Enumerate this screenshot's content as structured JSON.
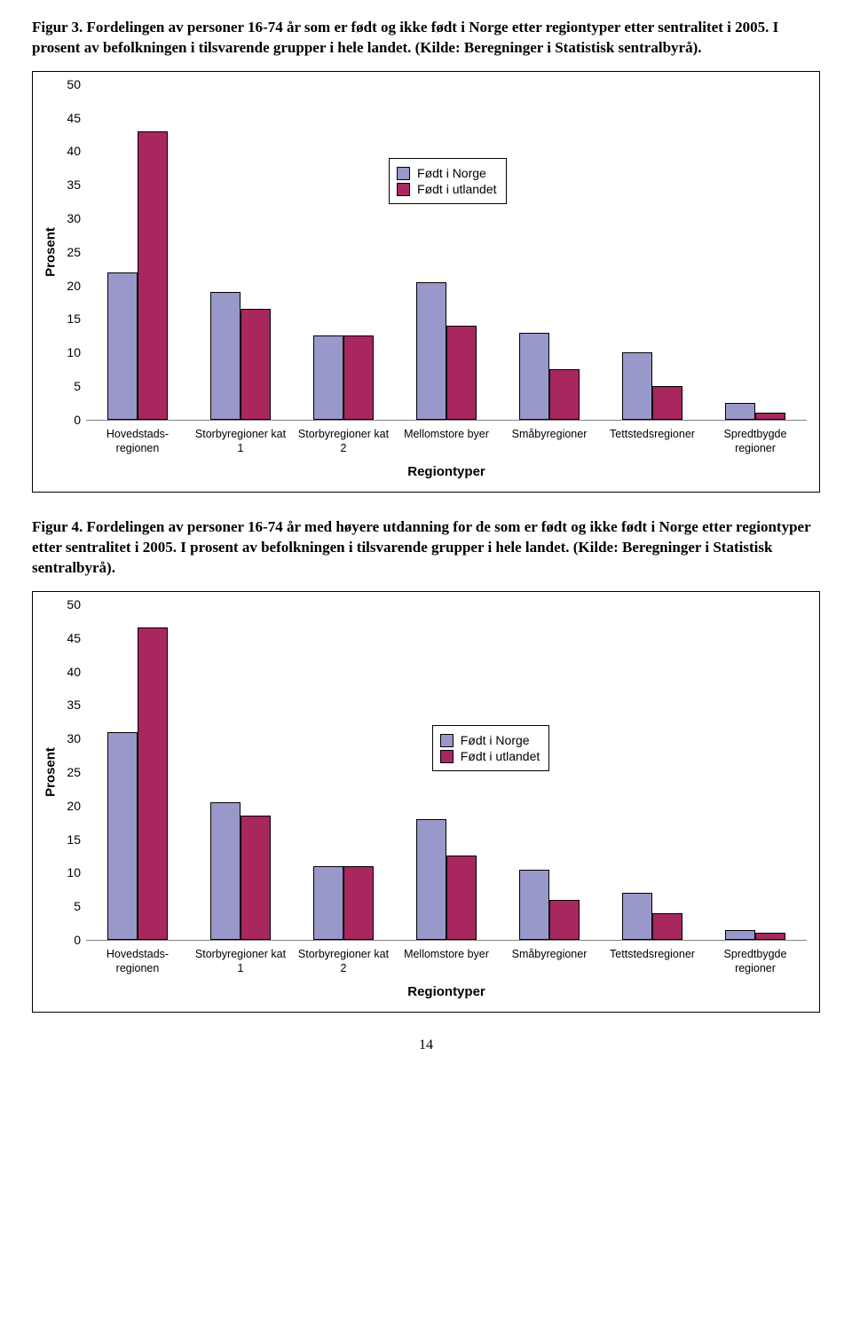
{
  "colors": {
    "series_a": "#9998ca",
    "series_b": "#a8275f",
    "border": "#000000",
    "bg": "#ffffff"
  },
  "categories": [
    "Hovedstads-\nregionen",
    "Storbyregioner kat\n1",
    "Storbyregioner kat\n2",
    "Mellomstore byer",
    "Småbyregioner",
    "Tettstedsregioner",
    "Spredtbygde\nregioner"
  ],
  "legend": {
    "series_a": "Født i Norge",
    "series_b": "Født i utlandet"
  },
  "ylabel": "Prosent",
  "ymax": 50,
  "ytick_step": 5,
  "xaxis_title": "Regiontyper",
  "page_number": "14",
  "figure3": {
    "caption": "Figur 3. Fordelingen av personer 16-74 år som er født og ikke født i Norge etter regiontyper etter sentralitet i 2005. I prosent av befolkningen i tilsvarende grupper i hele landet. (Kilde: Beregninger i Statistisk sentralbyrå).",
    "values_a": [
      22,
      19,
      12.5,
      20.5,
      13,
      10,
      2.5
    ],
    "values_b": [
      43,
      16.5,
      12.5,
      14,
      7.5,
      5,
      1
    ]
  },
  "figure4": {
    "caption": "Figur 4. Fordelingen av personer 16-74 år med høyere utdanning for de som er født og ikke født i Norge etter regiontyper etter sentralitet i 2005. I prosent av befolkningen i tilsvarende grupper i hele landet. (Kilde: Beregninger i Statistisk sentralbyrå).",
    "values_a": [
      31,
      20.5,
      11,
      18,
      10.5,
      7,
      1.5
    ],
    "values_b": [
      46.5,
      18.5,
      11,
      12.5,
      6,
      4,
      1
    ]
  }
}
